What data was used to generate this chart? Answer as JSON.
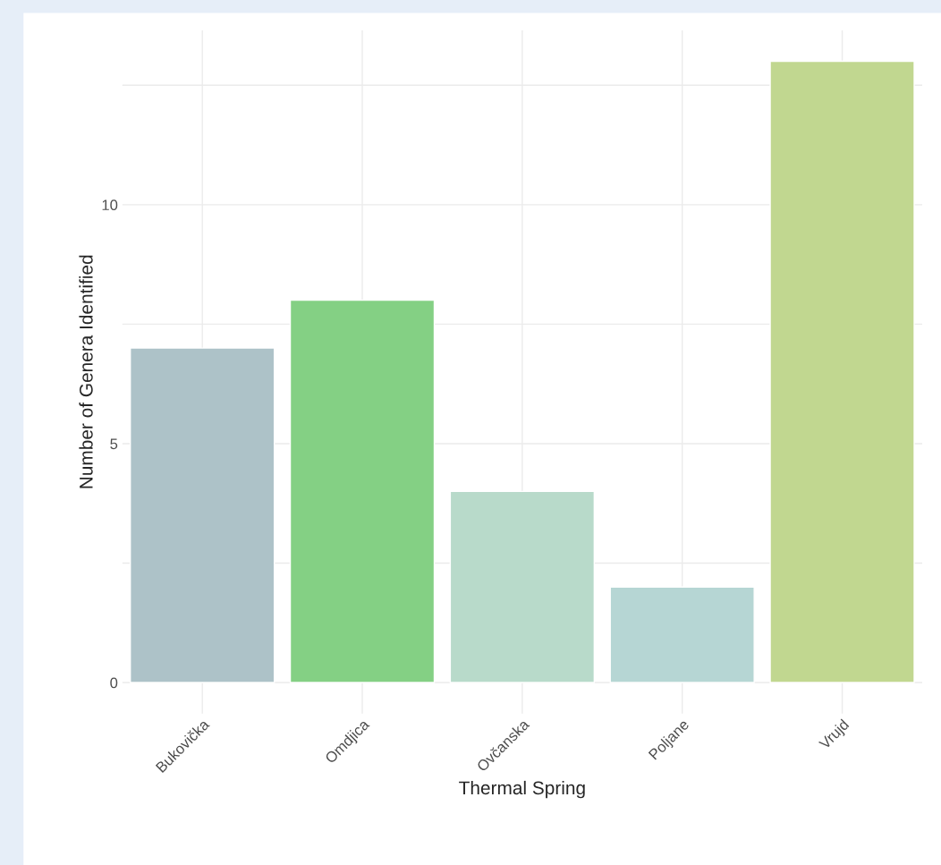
{
  "chart_data": {
    "type": "bar",
    "xlabel": "Thermal Spring",
    "ylabel": "Number of Genera Identified",
    "categories": [
      "Bukovička",
      "Omdjica",
      "Ovčanska",
      "Poljane",
      "Vrujd"
    ],
    "values": [
      7,
      8,
      4,
      2,
      13
    ],
    "colors": [
      "#a9c4cc",
      "#77dd77",
      "#b2e0ca",
      "#b0dcd9",
      "#c5e384"
    ],
    "ylim": [
      -0.65,
      13.65
    ],
    "yticks": [
      0,
      {
        "value": 2.5,
        "label": null
      },
      5,
      {
        "value": 7.5,
        "label": null
      },
      10,
      {
        "value": 12.5,
        "label": null
      }
    ],
    "grid": true
  }
}
